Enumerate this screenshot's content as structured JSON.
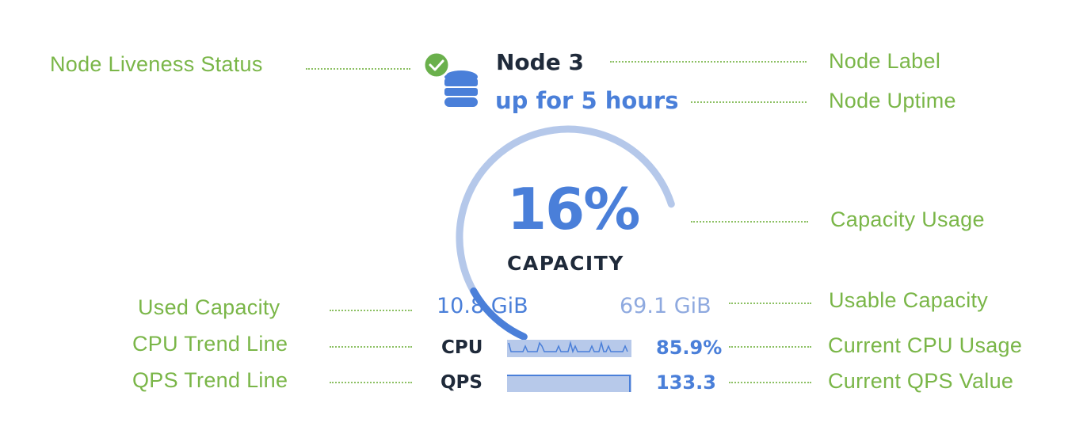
{
  "colors": {
    "annotation": "#7ab648",
    "accent": "#4a7fd9",
    "arc_track": "#b5c8ea",
    "title": "#1f2a3a",
    "check": "#6ab04c"
  },
  "node": {
    "label": "Node 3",
    "uptime": "up for 5 hours",
    "status_icon": "check-circle-icon",
    "node_icon": "database-icon",
    "status": "live"
  },
  "capacity": {
    "percent_text": "16%",
    "percent": 16,
    "label": "CAPACITY",
    "used": "10.8 GiB",
    "usable": "69.1 GiB"
  },
  "cpu": {
    "label": "CPU",
    "value": "85.9%"
  },
  "qps": {
    "label": "QPS",
    "value": "133.3"
  },
  "annotations": {
    "liveness": "Node Liveness Status",
    "label": "Node Label",
    "uptime": "Node Uptime",
    "capacity_usage": "Capacity Usage",
    "used": "Used Capacity",
    "usable": "Usable Capacity",
    "cpu_trend": "CPU Trend Line",
    "cpu_current": "Current CPU Usage",
    "qps_trend": "QPS Trend Line",
    "qps_current": "Current QPS Value"
  }
}
